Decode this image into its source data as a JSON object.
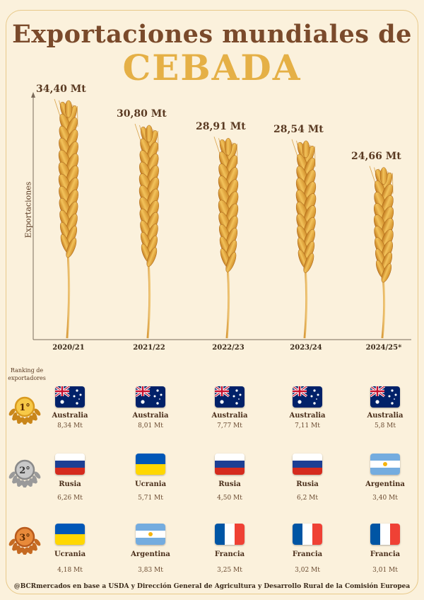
{
  "header": {
    "title_line1": "Exportaciones mundiales de",
    "title_line2": "CEBADA"
  },
  "chart_data": {
    "type": "bar",
    "ylabel": "Exportaciones",
    "categories": [
      "2020/21",
      "2021/22",
      "2022/23",
      "2023/24",
      "2024/25*"
    ],
    "series": [
      {
        "values": [
          34.4,
          30.8,
          28.91,
          28.54,
          24.66
        ]
      }
    ],
    "value_labels": [
      "34,40 Mt",
      "30,80 Mt",
      "28,91 Mt",
      "28,54 Mt",
      "24,66 Mt"
    ],
    "ylim": [
      0,
      36
    ]
  },
  "ranking": {
    "heading": "Ranking de exportadores",
    "medals": [
      "1°",
      "2°",
      "3°"
    ],
    "rows": [
      [
        {
          "country": "Australia",
          "value": "8,34 Mt",
          "flag": "australia"
        },
        {
          "country": "Australia",
          "value": "8,01 Mt",
          "flag": "australia"
        },
        {
          "country": "Australia",
          "value": "7,77 Mt",
          "flag": "australia"
        },
        {
          "country": "Australia",
          "value": "7,11 Mt",
          "flag": "australia"
        },
        {
          "country": "Australia",
          "value": "5,8 Mt",
          "flag": "australia"
        }
      ],
      [
        {
          "country": "Rusia",
          "value": "6,26 Mt",
          "flag": "russia"
        },
        {
          "country": "Ucrania",
          "value": "5,71 Mt",
          "flag": "ukraine"
        },
        {
          "country": "Rusia",
          "value": "4,50 Mt",
          "flag": "russia"
        },
        {
          "country": "Rusia",
          "value": "6,2 Mt",
          "flag": "russia"
        },
        {
          "country": "Argentina",
          "value": "3,40 Mt",
          "flag": "argentina"
        }
      ],
      [
        {
          "country": "Ucrania",
          "value": "4,18 Mt",
          "flag": "ukraine"
        },
        {
          "country": "Argentina",
          "value": "3,83 Mt",
          "flag": "argentina"
        },
        {
          "country": "Francia",
          "value": "3,25 Mt",
          "flag": "france"
        },
        {
          "country": "Francia",
          "value": "3,02 Mt",
          "flag": "france"
        },
        {
          "country": "Francia",
          "value": "3,01 Mt",
          "flag": "france"
        }
      ]
    ]
  },
  "footer": {
    "source": "@BCRmercados en base a USDA y Dirección General de Agricultura y Desarrollo Rural de la Comisión Europea"
  },
  "colors": {
    "title": "#7a4a2b",
    "accent": "#e5b046",
    "background": "#fbf1dc",
    "grain": "#e3a640"
  }
}
